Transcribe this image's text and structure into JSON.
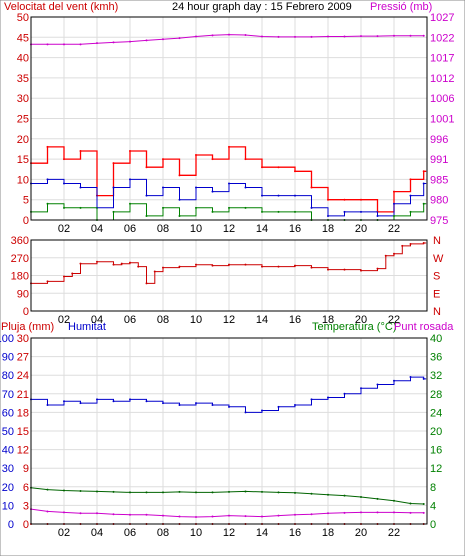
{
  "header": {
    "wind_label": "Velocitat del vent (kmh)",
    "title": "24 hour graph day : 15 Febrero 2009",
    "pressure_label": "Pressió (mb)"
  },
  "colors": {
    "wind_max": "#ff0000",
    "wind_avg": "#0000cc",
    "wind_min": "#008000",
    "pressure": "#cc00cc",
    "direction": "#cc0000",
    "humidity": "#0000cc",
    "temperature": "#006400",
    "dew_point": "#cc00cc",
    "rain": "#cc0000",
    "axis_left": "#cc0000",
    "axis_humidity": "#0000cc",
    "axis_right_temp": "#008000",
    "axis_right_pressure": "#cc00cc",
    "grid": "#dddddd",
    "frame": "#000000"
  },
  "bottom_panel": {
    "rain_label": "Pluja (mm)",
    "humidity_label": "Humitat",
    "temperature_label": "Temperatura (°C)",
    "dew_label": "Punt rosada"
  },
  "chart_data": [
    {
      "type": "line",
      "panel": "wind_pressure",
      "x_ticks": [
        "02",
        "04",
        "06",
        "08",
        "10",
        "12",
        "14",
        "16",
        "18",
        "20",
        "22"
      ],
      "xlim": [
        0,
        24
      ],
      "y_left_ticks": [
        "0",
        "5",
        "10",
        "15",
        "20",
        "25",
        "30",
        "35",
        "40",
        "45",
        "50"
      ],
      "y_left_lim": [
        0,
        50
      ],
      "y_right_ticks": [
        "975",
        "980",
        "985",
        "991",
        "996",
        "1001",
        "1006",
        "1012",
        "1017",
        "1022",
        "1027"
      ],
      "y_right_lim": [
        975,
        1027
      ],
      "x_hours": [
        0,
        1,
        2,
        3,
        4,
        5,
        6,
        7,
        8,
        9,
        10,
        11,
        12,
        13,
        14,
        15,
        16,
        17,
        18,
        19,
        20,
        21,
        22,
        23,
        23.8
      ],
      "series": [
        {
          "key": "wind_max",
          "step": true,
          "values": [
            14,
            18,
            15,
            17,
            6,
            14,
            17,
            13,
            15,
            11,
            16,
            15,
            18,
            15,
            13,
            13,
            12,
            8,
            5,
            5,
            5,
            2,
            7,
            10,
            12
          ]
        },
        {
          "key": "wind_avg",
          "step": true,
          "values": [
            9,
            10,
            9,
            8,
            3,
            8,
            10,
            6,
            8,
            5,
            8,
            7,
            9,
            8,
            6,
            6,
            6,
            3,
            1,
            2,
            2,
            1,
            4,
            6,
            9
          ]
        },
        {
          "key": "wind_min",
          "step": true,
          "values": [
            2,
            4,
            3,
            3,
            0,
            2,
            4,
            1,
            3,
            1,
            3,
            2,
            3,
            3,
            2,
            2,
            2,
            0,
            0,
            0,
            0,
            0,
            1,
            2,
            4
          ]
        },
        {
          "key": "pressure",
          "step": false,
          "values": [
            1020,
            1020,
            1020,
            1020,
            1020.3,
            1020.5,
            1020.7,
            1021,
            1021.3,
            1021.6,
            1022,
            1022.3,
            1022.5,
            1022.4,
            1022,
            1021.9,
            1021.9,
            1021.9,
            1022,
            1022,
            1022.1,
            1022.1,
            1022.2,
            1022.2,
            1022.2
          ]
        }
      ]
    },
    {
      "type": "line",
      "panel": "wind_direction",
      "x_ticks": [
        "02",
        "04",
        "06",
        "08",
        "10",
        "12",
        "14",
        "16",
        "18",
        "20",
        "22"
      ],
      "xlim": [
        0,
        24
      ],
      "y_left_ticks": [
        "0",
        "90",
        "180",
        "270",
        "360"
      ],
      "y_left_lim": [
        0,
        360
      ],
      "y_right_ticks": [
        "N",
        "E",
        "S",
        "W",
        "N"
      ],
      "x_hours": [
        0,
        1,
        2,
        2.5,
        3,
        4,
        5,
        5.5,
        6,
        6.5,
        7,
        7.5,
        8,
        9,
        10,
        11,
        12,
        13,
        14,
        15,
        16,
        17,
        18,
        19,
        20,
        21,
        21.5,
        22,
        22.5,
        23,
        23.8
      ],
      "series": [
        {
          "key": "direction",
          "step": true,
          "values": [
            140,
            150,
            175,
            190,
            240,
            250,
            235,
            240,
            245,
            225,
            140,
            200,
            220,
            225,
            235,
            230,
            235,
            235,
            225,
            225,
            230,
            220,
            210,
            210,
            205,
            215,
            280,
            290,
            330,
            340,
            345
          ]
        }
      ]
    },
    {
      "type": "line",
      "panel": "rain_humidity_temperature",
      "x_ticks": [
        "02",
        "04",
        "06",
        "08",
        "10",
        "12",
        "14",
        "16",
        "18",
        "20",
        "22"
      ],
      "xlim": [
        0,
        24
      ],
      "y_rain_ticks": [
        "0",
        "3",
        "6",
        "9",
        "12",
        "15",
        "18",
        "21",
        "24",
        "27",
        "30"
      ],
      "y_rain_lim": [
        0,
        30
      ],
      "y_humidity_ticks": [
        "0",
        "10",
        "20",
        "30",
        "40",
        "50",
        "60",
        "70",
        "80",
        "90",
        "100"
      ],
      "y_humidity_lim": [
        0,
        100
      ],
      "y_temp_ticks": [
        "0",
        "4",
        "8",
        "12",
        "16",
        "20",
        "24",
        "28",
        "32",
        "36",
        "40"
      ],
      "y_temp_lim": [
        0,
        40
      ],
      "x_hours": [
        0,
        1,
        2,
        3,
        4,
        5,
        6,
        7,
        8,
        9,
        10,
        11,
        12,
        13,
        14,
        15,
        16,
        17,
        18,
        19,
        20,
        21,
        22,
        23,
        23.8
      ],
      "series": [
        {
          "key": "humidity",
          "step": true,
          "values": [
            67,
            64,
            66,
            65,
            67,
            66,
            67,
            66,
            65,
            64,
            65,
            64,
            63,
            60,
            61,
            63,
            64,
            67,
            68,
            70,
            73,
            75,
            77,
            79,
            78
          ]
        },
        {
          "key": "temperature",
          "step": false,
          "values": [
            7.8,
            7.4,
            7.2,
            7.1,
            7,
            6.9,
            6.8,
            6.8,
            6.8,
            6.9,
            6.8,
            6.8,
            6.9,
            7,
            6.9,
            6.8,
            6.7,
            6.5,
            6.3,
            6.1,
            5.8,
            5.4,
            5,
            4.4,
            4.3
          ]
        },
        {
          "key": "dew_point",
          "step": false,
          "values": [
            3.2,
            2.7,
            2.5,
            2.3,
            2.3,
            2.1,
            2,
            2,
            1.8,
            1.6,
            1.5,
            1.6,
            1.8,
            1.7,
            1.6,
            1.8,
            2,
            2.1,
            2.3,
            2.4,
            2.5,
            2.5,
            2.5,
            2.4,
            2.4
          ]
        },
        {
          "key": "rain",
          "step": true,
          "values": [
            0,
            0,
            0,
            0,
            0,
            0,
            0,
            0,
            0,
            0,
            0,
            0,
            0,
            0,
            0,
            0,
            0,
            0,
            0,
            0,
            0,
            0,
            0,
            0,
            0
          ]
        }
      ]
    }
  ]
}
